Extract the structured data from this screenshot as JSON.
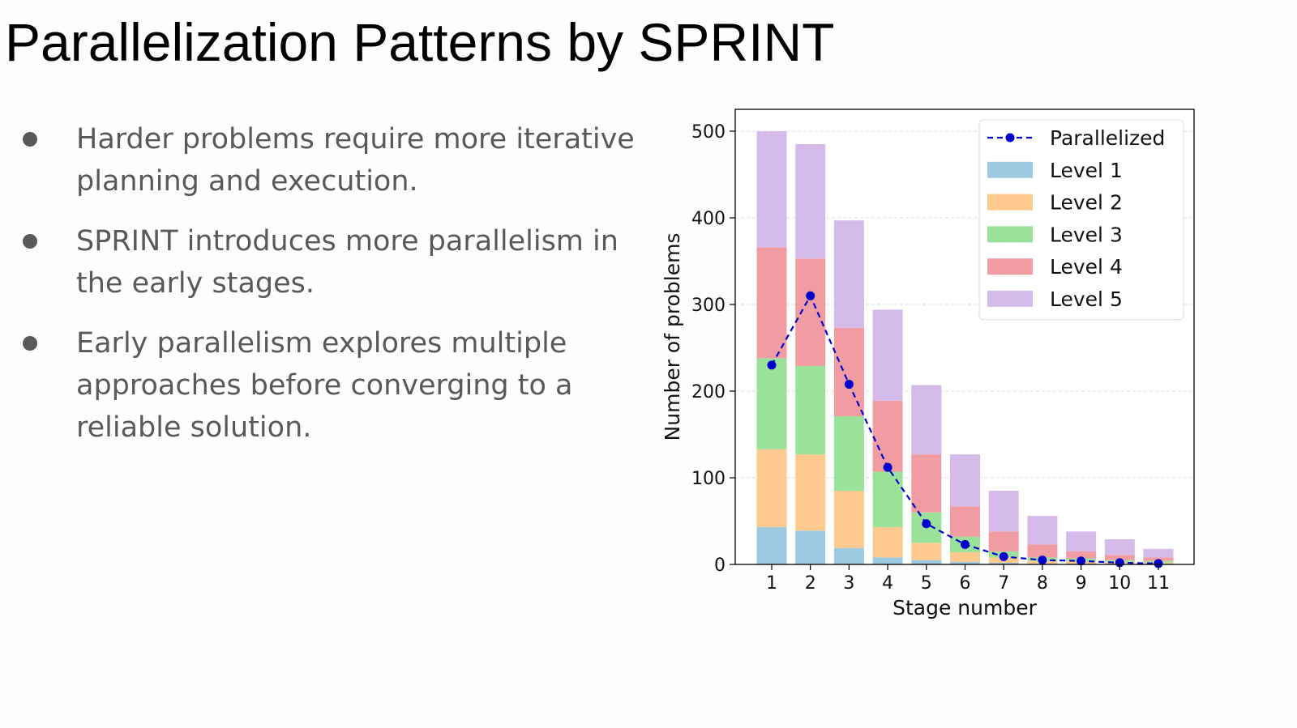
{
  "slide": {
    "title": "Parallelization Patterns by SPRINT",
    "bullets": [
      "Harder problems require more iterative planning and execution.",
      "SPRINT introduces more parallelism in the early stages.",
      "Early parallelism explores multiple approaches before converging to a reliable solution."
    ]
  },
  "chart_data": {
    "type": "bar",
    "stacked": true,
    "title": "",
    "xlabel": "Stage number",
    "ylabel": "Number of problems",
    "categories": [
      "1",
      "2",
      "3",
      "4",
      "5",
      "6",
      "7",
      "8",
      "9",
      "10",
      "11"
    ],
    "ylim": [
      0,
      525
    ],
    "yticks": [
      0,
      100,
      200,
      300,
      400,
      500
    ],
    "grid": true,
    "legend_position": "top-right",
    "series": [
      {
        "name": "Level 1",
        "color": "#9ecae1",
        "values": [
          43,
          39,
          19,
          8,
          5,
          3,
          2,
          1,
          1,
          1,
          1
        ]
      },
      {
        "name": "Level 2",
        "color": "#fdc98e",
        "values": [
          90,
          88,
          66,
          35,
          20,
          11,
          6,
          3,
          3,
          2,
          1
        ]
      },
      {
        "name": "Level 3",
        "color": "#9ae29a",
        "values": [
          105,
          102,
          86,
          64,
          35,
          18,
          7,
          4,
          3,
          2,
          2
        ]
      },
      {
        "name": "Level 4",
        "color": "#f19ca2",
        "values": [
          128,
          124,
          102,
          82,
          67,
          35,
          23,
          15,
          8,
          6,
          4
        ]
      },
      {
        "name": "Level 5",
        "color": "#d5bbea",
        "values": [
          134,
          132,
          124,
          105,
          80,
          60,
          47,
          33,
          23,
          18,
          10
        ]
      }
    ],
    "line_series": {
      "name": "Parallelized",
      "color": "#0000cc",
      "style": "dashed",
      "values": [
        230,
        310,
        208,
        112,
        47,
        23,
        9,
        5,
        4,
        2,
        1
      ]
    }
  }
}
